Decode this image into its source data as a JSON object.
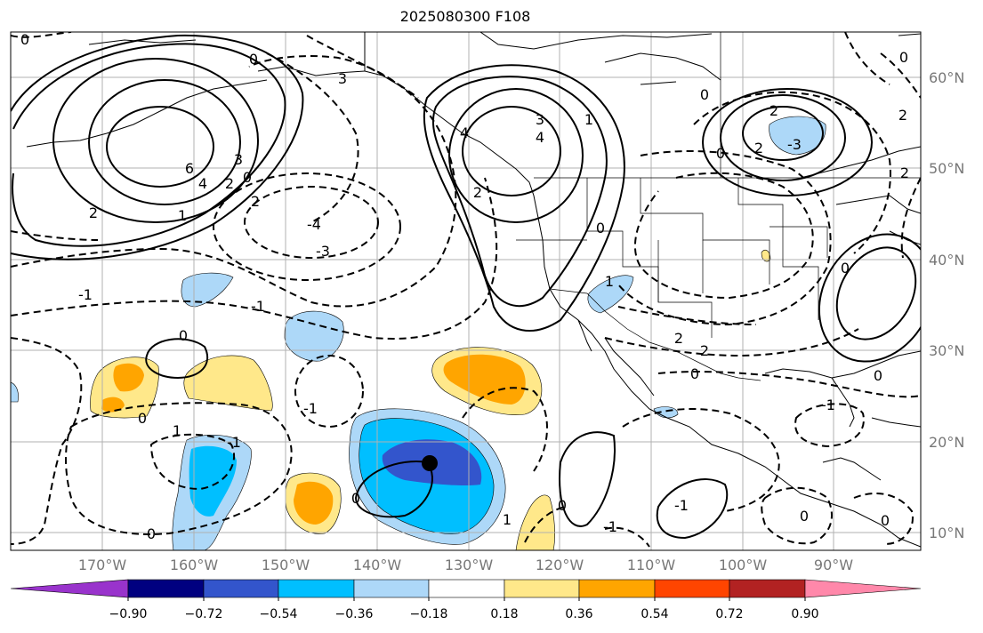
{
  "title": "2025080300 F108",
  "lat_labels": [
    "60°N",
    "50°N",
    "40°N",
    "30°N",
    "20°N",
    "10°N"
  ],
  "lon_labels": [
    "170°W",
    "160°W",
    "150°W",
    "140°W",
    "130°W",
    "120°W",
    "110°W",
    "100°W",
    "90°W"
  ],
  "colorbar": {
    "tick_labels": [
      "−0.90",
      "−0.72",
      "−0.54",
      "−0.36",
      "−0.18",
      "0.18",
      "0.36",
      "0.54",
      "0.72",
      "0.90"
    ],
    "colors": [
      "#9933cc",
      "#000080",
      "#3355cc",
      "#00bfff",
      "#add8f8",
      "#ffffff",
      "#ffe88a",
      "#ffa500",
      "#ff4500",
      "#b22222",
      "#ff88aa"
    ]
  },
  "contour_labels": [
    "0",
    "2",
    "4",
    "6",
    "3",
    "2",
    "0",
    "1",
    "2",
    "3",
    "0",
    "3",
    "4",
    "1",
    "4",
    "2",
    "0",
    "0",
    "2",
    "2",
    "-3",
    "0",
    "2",
    "0",
    "-1",
    "-1",
    "-4",
    "-3",
    "0",
    "0",
    "-1",
    "1",
    "-1",
    "0",
    "2",
    "2",
    "0",
    "0",
    "-1",
    "0",
    "1",
    "-1",
    "0",
    "0",
    "-1",
    "0",
    "0",
    "2",
    "1"
  ],
  "cyclone_marker": {
    "lon": -134,
    "lat": 17.5
  }
}
